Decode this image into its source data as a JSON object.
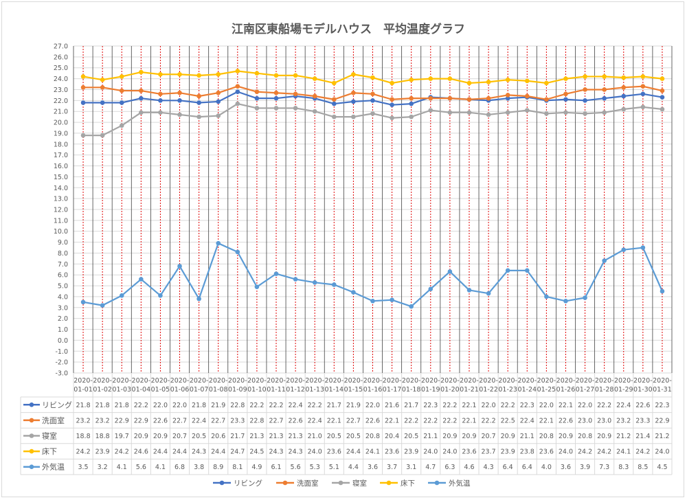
{
  "chart_data": {
    "type": "line",
    "title": "江南区東船場モデルハウス　平均温度グラフ",
    "categories": [
      "2020-01-01",
      "2020-01-02",
      "2020-01-03",
      "2020-01-04",
      "2020-01-05",
      "2020-01-06",
      "2020-01-07",
      "2020-01-08",
      "2020-01-09",
      "2020-01-10",
      "2020-01-11",
      "2020-01-12",
      "2020-01-13",
      "2020-01-14",
      "2020-01-15",
      "2020-01-16",
      "2020-01-17",
      "2020-01-18",
      "2020-01-19",
      "2020-01-20",
      "2020-01-21",
      "2020-01-22",
      "2020-01-23",
      "2020-01-24",
      "2020-01-25",
      "2020-01-26",
      "2020-01-27",
      "2020-01-28",
      "2020-01-29",
      "2020-01-30",
      "2020-01-31"
    ],
    "ylim": [
      -3.0,
      27.0
    ],
    "ytick_step": 1.0,
    "grid": true,
    "legend_placement": "bottom",
    "data_table": true,
    "series": [
      {
        "name": "リビング",
        "color": "#4472C4",
        "values": [
          21.8,
          21.8,
          21.8,
          22.2,
          22.0,
          22.0,
          21.8,
          21.9,
          22.8,
          22.2,
          22.2,
          22.4,
          22.2,
          21.7,
          21.9,
          22.0,
          21.6,
          21.7,
          22.3,
          22.2,
          22.1,
          22.0,
          22.2,
          22.3,
          22.0,
          22.1,
          22.0,
          22.2,
          22.4,
          22.6,
          22.3
        ]
      },
      {
        "name": "洗面室",
        "color": "#ED7D31",
        "values": [
          23.2,
          23.2,
          22.9,
          22.9,
          22.6,
          22.7,
          22.4,
          22.7,
          23.3,
          22.8,
          22.7,
          22.6,
          22.4,
          22.1,
          22.7,
          22.6,
          22.1,
          22.2,
          22.2,
          22.2,
          22.1,
          22.2,
          22.5,
          22.4,
          22.1,
          22.6,
          23.0,
          23.0,
          23.2,
          23.3,
          22.9
        ]
      },
      {
        "name": "寝室",
        "color": "#A5A5A5",
        "values": [
          18.8,
          18.8,
          19.7,
          20.9,
          20.9,
          20.7,
          20.5,
          20.6,
          21.7,
          21.3,
          21.3,
          21.3,
          21.0,
          20.5,
          20.5,
          20.8,
          20.4,
          20.5,
          21.1,
          20.9,
          20.9,
          20.7,
          20.9,
          21.1,
          20.8,
          20.9,
          20.8,
          20.9,
          21.2,
          21.4,
          21.2
        ]
      },
      {
        "name": "床下",
        "color": "#FFC000",
        "values": [
          24.2,
          23.9,
          24.2,
          24.6,
          24.4,
          24.4,
          24.3,
          24.4,
          24.7,
          24.5,
          24.3,
          24.3,
          24.0,
          23.6,
          24.4,
          24.1,
          23.6,
          23.9,
          24.0,
          24.0,
          23.6,
          23.7,
          23.9,
          23.8,
          23.6,
          24.0,
          24.2,
          24.2,
          24.1,
          24.2,
          24.0
        ]
      },
      {
        "name": "外気温",
        "color": "#5B9BD5",
        "values": [
          3.5,
          3.2,
          4.1,
          5.6,
          4.1,
          6.8,
          3.8,
          8.9,
          8.1,
          4.9,
          6.1,
          5.6,
          5.3,
          5.1,
          4.4,
          3.6,
          3.7,
          3.1,
          4.7,
          6.3,
          4.6,
          4.3,
          6.4,
          6.4,
          4.0,
          3.6,
          3.9,
          7.3,
          8.3,
          8.5,
          4.5
        ]
      }
    ]
  }
}
